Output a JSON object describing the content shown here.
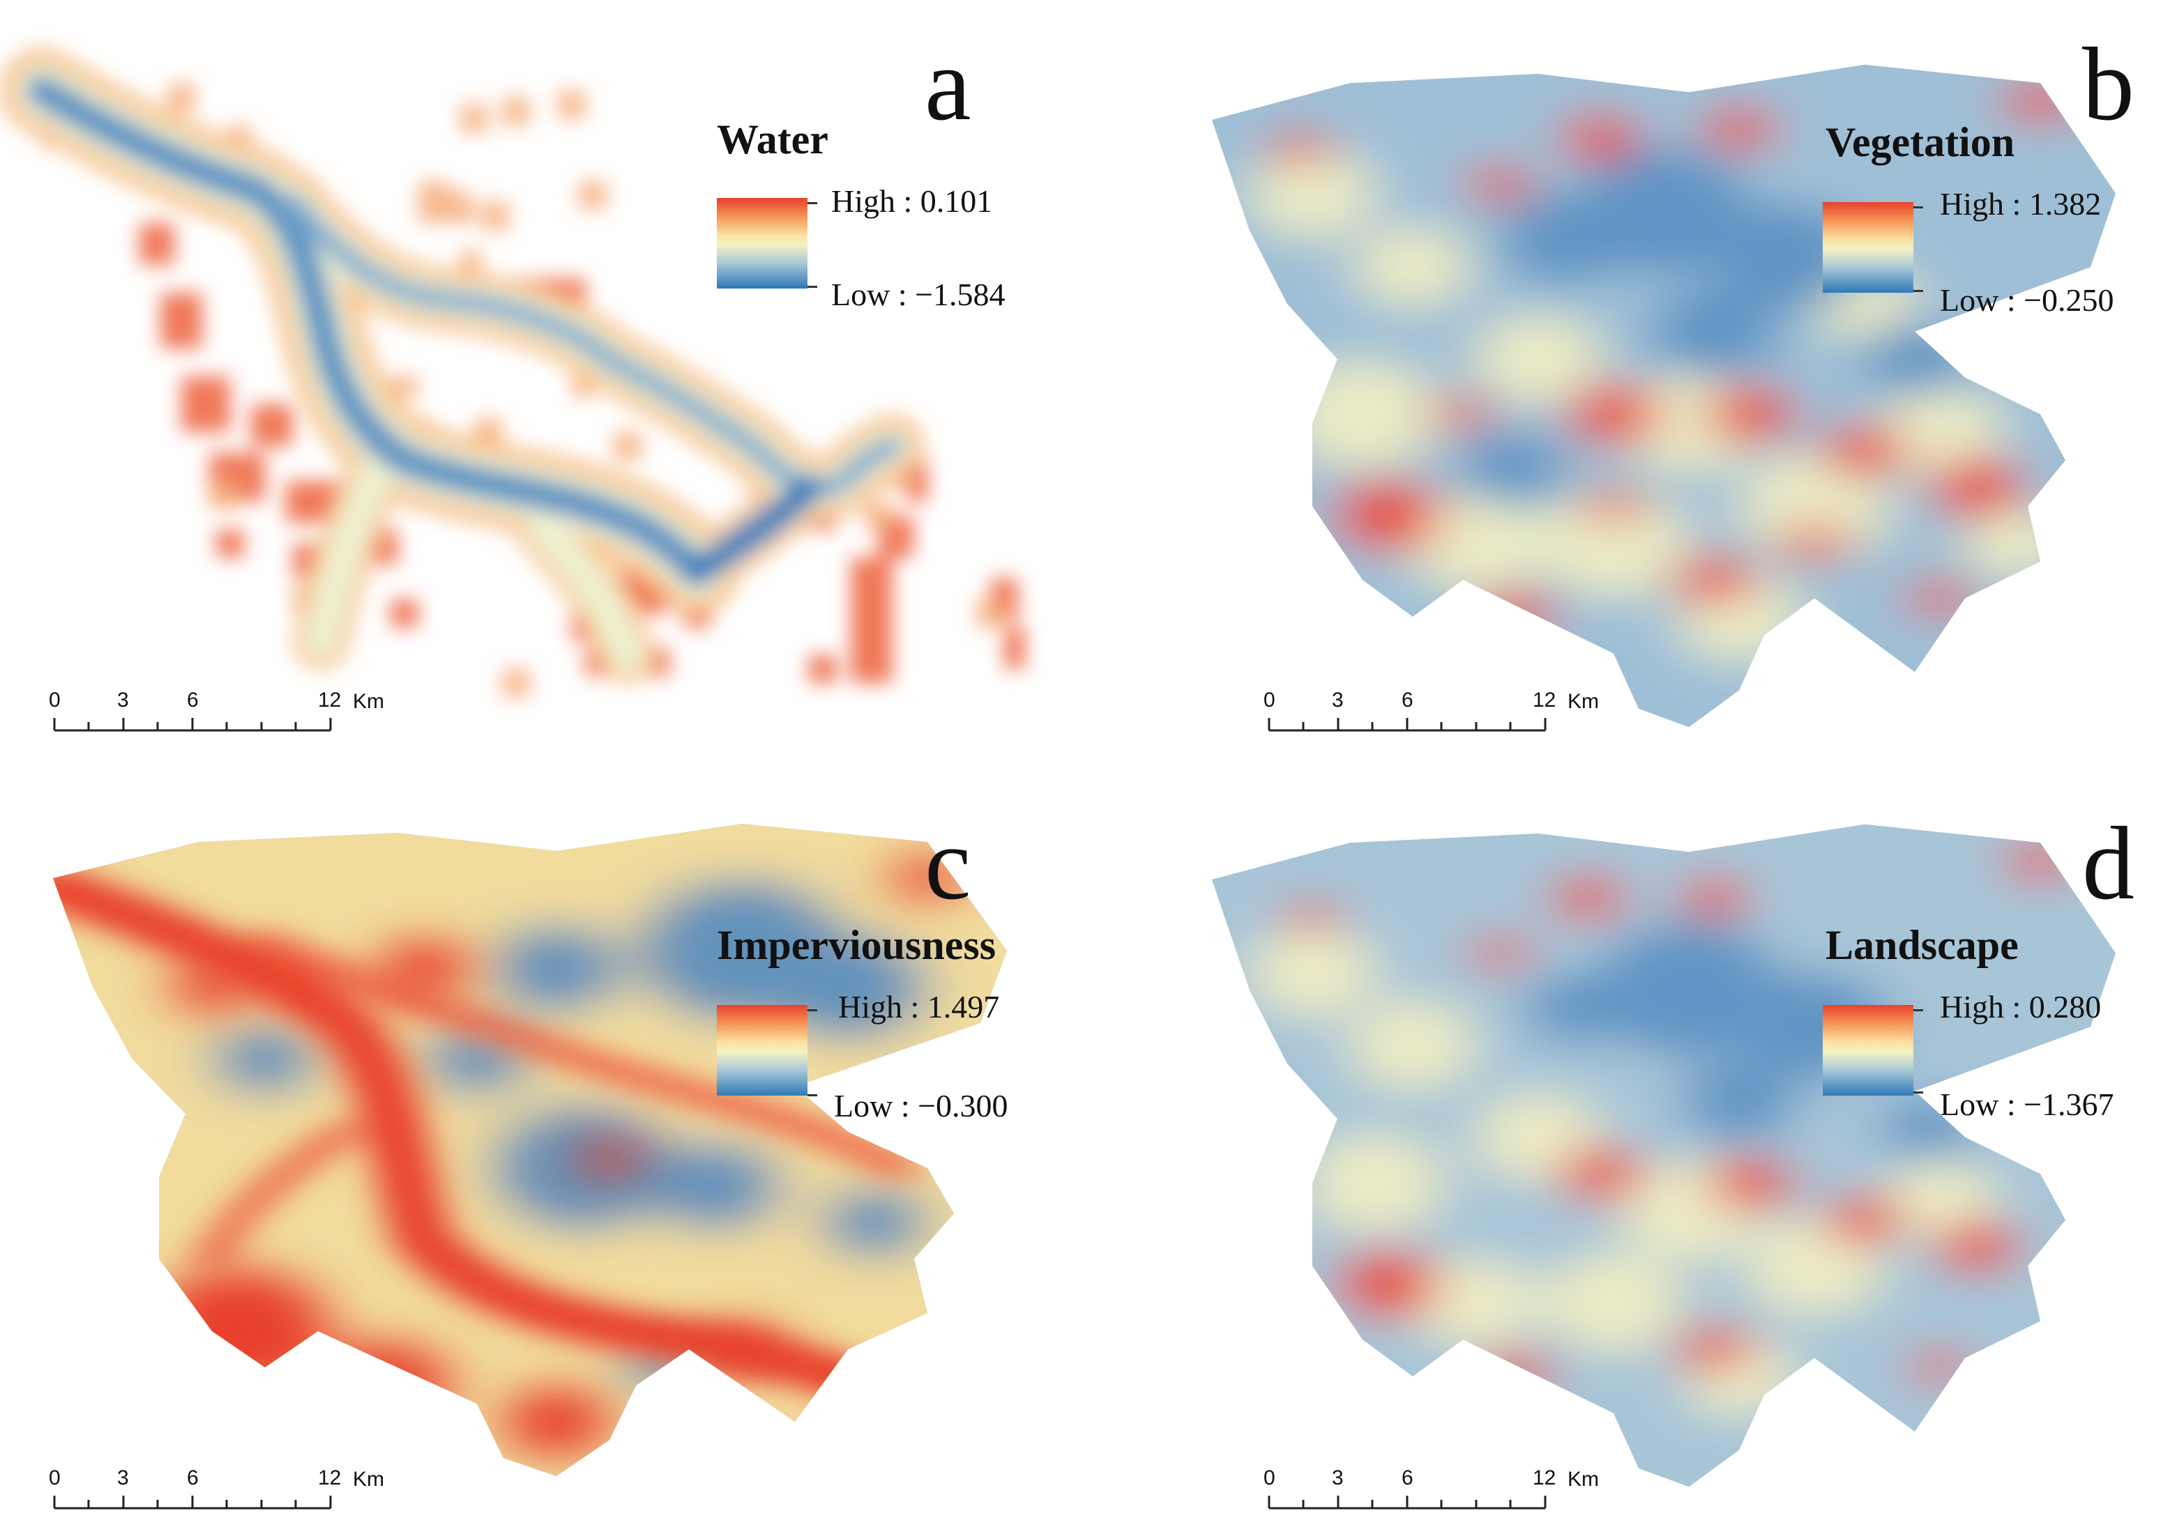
{
  "panels": [
    {
      "letter": "a",
      "legend_title": "Water",
      "high_label": "High : 0.101",
      "low_label": "Low : −1.584",
      "scale": {
        "ticks": [
          "0",
          "3",
          "6",
          "12"
        ],
        "unit": "Km"
      }
    },
    {
      "letter": "b",
      "legend_title": "Vegetation",
      "high_label": "High : 1.382",
      "low_label": "Low : −0.250",
      "scale": {
        "ticks": [
          "0",
          "3",
          "6",
          "12"
        ],
        "unit": "Km"
      }
    },
    {
      "letter": "c",
      "legend_title": "Imperviousness",
      "high_label": "High : 1.497",
      "low_label": "Low : −0.300",
      "scale": {
        "ticks": [
          "0",
          "3",
          "6",
          "12"
        ],
        "unit": "Km"
      }
    },
    {
      "letter": "d",
      "legend_title": "Landscape",
      "high_label": "High : 0.280",
      "low_label": "Low : −1.367",
      "scale": {
        "ticks": [
          "0",
          "3",
          "6",
          "12"
        ],
        "unit": "Km"
      }
    }
  ],
  "colors": {
    "high": "#e8412a",
    "mid": "#f4f1c2",
    "low": "#2f78b8"
  }
}
